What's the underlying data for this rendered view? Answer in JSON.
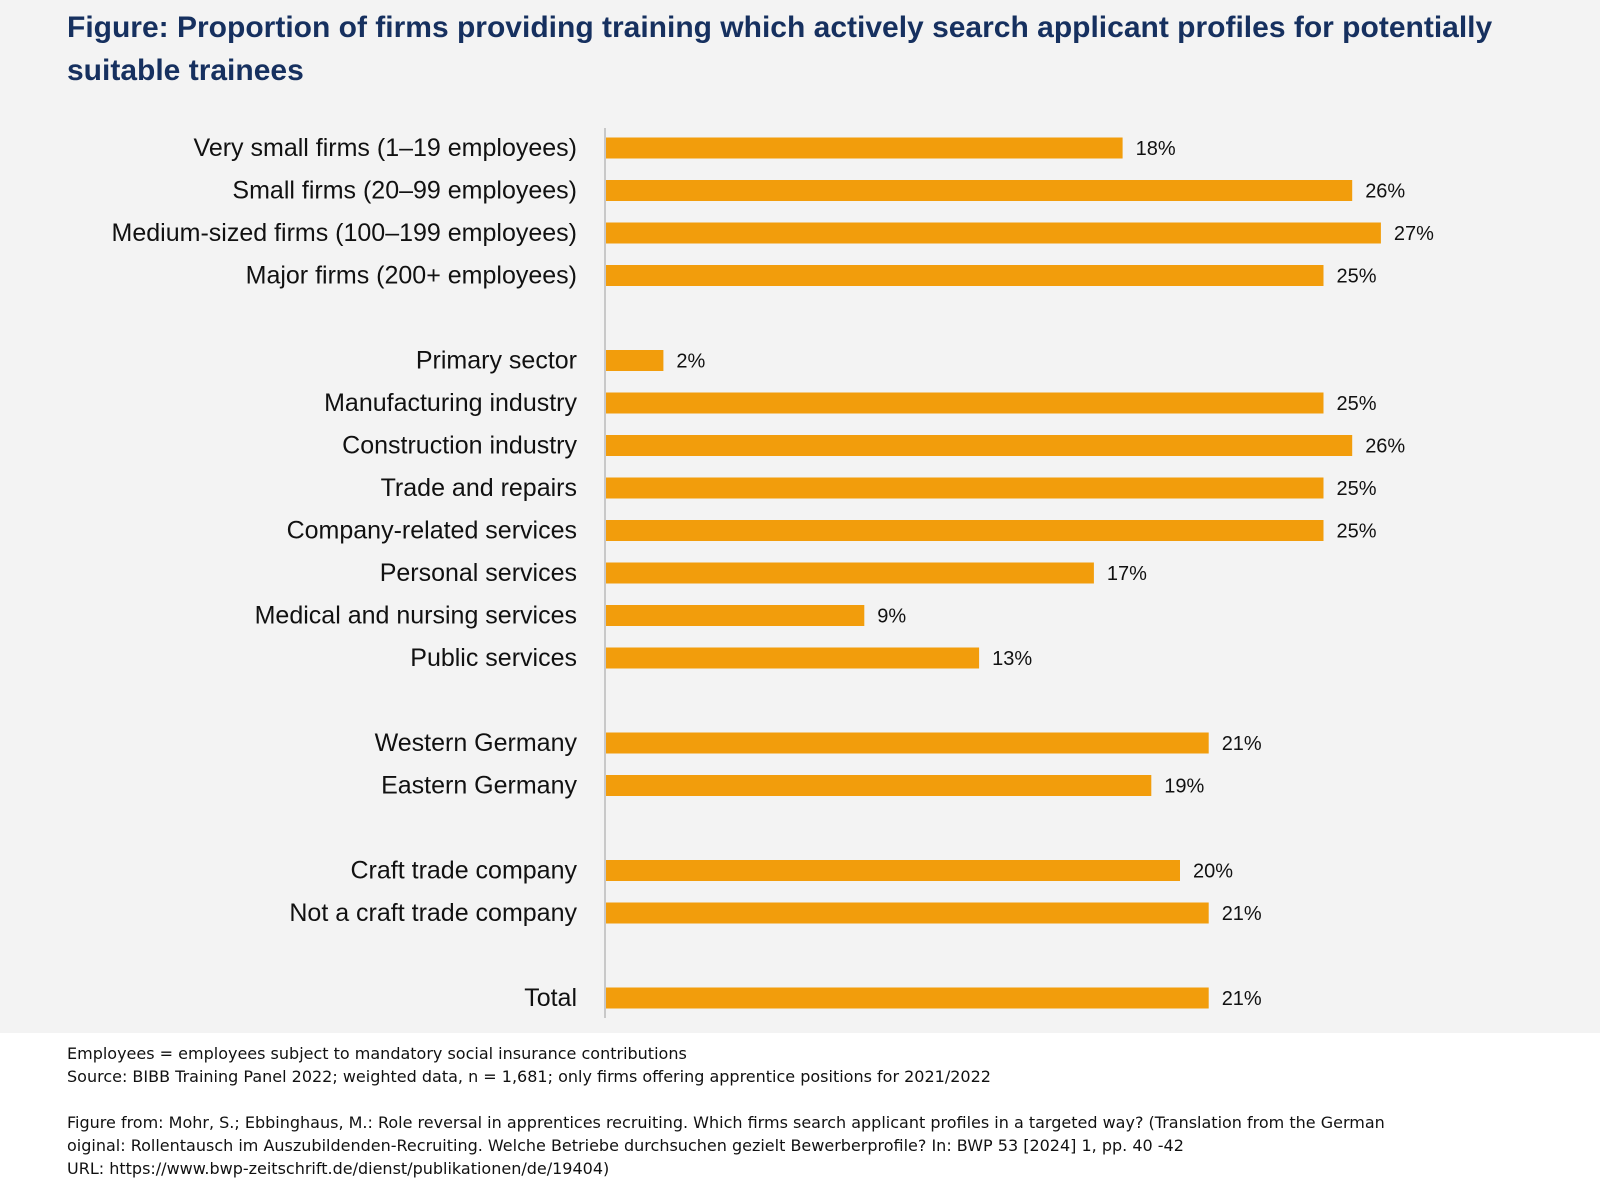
{
  "title": "Figure: Proportion of firms providing training which actively search applicant profiles for potentially suitable trainees",
  "colors": {
    "bar": "#f29d0c",
    "title": "#16305f",
    "axis": "#c8c8c8",
    "panel": "#f3f3f3"
  },
  "chart_data": {
    "type": "bar",
    "orientation": "horizontal",
    "title": "Figure: Proportion of firms providing training which actively search applicant profiles for potentially suitable trainees",
    "xlabel": "",
    "ylabel": "",
    "xlim": [
      0,
      30
    ],
    "grid": false,
    "unit": "%",
    "groups": [
      {
        "categories": [
          "Very small firms (1–19 employees)",
          "Small firms (20–99 employees)",
          "Medium-sized firms (100–199 employees)",
          "Major firms (200+ employees)"
        ],
        "values": [
          18,
          26,
          27,
          25
        ],
        "labels": [
          "18%",
          "26%",
          "27%",
          "25%"
        ]
      },
      {
        "categories": [
          "Primary sector",
          "Manufacturing industry",
          "Construction industry",
          "Trade and repairs",
          "Company-related services",
          "Personal services",
          "Medical and nursing services",
          "Public services"
        ],
        "values": [
          2,
          25,
          26,
          25,
          25,
          17,
          9,
          13
        ],
        "labels": [
          "2%",
          "25%",
          "26%",
          "25%",
          "25%",
          "17%",
          "9%",
          "13%"
        ]
      },
      {
        "categories": [
          "Western Germany",
          "Eastern Germany"
        ],
        "values": [
          21,
          19
        ],
        "labels": [
          "21%",
          "19%"
        ]
      },
      {
        "categories": [
          "Craft trade company",
          "Not a craft trade company"
        ],
        "values": [
          20,
          21
        ],
        "labels": [
          "20%",
          "21%"
        ]
      },
      {
        "categories": [
          "Total"
        ],
        "values": [
          21
        ],
        "labels": [
          "21%"
        ]
      }
    ]
  },
  "footnotes": {
    "definition": "Employees = employees subject to mandatory social insurance contributions",
    "source": "Source: BIBB Training Panel 2022; weighted data, n = 1,681; only firms offering apprentice positions for 2021/2022",
    "citation_line1": "Figure from: Mohr, S.; Ebbinghaus, M.: Role reversal in apprentices recruiting. Which firms  search applicant profiles in a targeted way? (Translation from the German",
    "citation_line2": "oiginal: Rollentausch im Auszubildenden-Recruiting. Welche Betriebe durchsuchen gezielt Bewerberprofile? In: BWP 53 [2024] 1, pp. 40 -42",
    "url_line": "URL: https://www.bwp-zeitschrift.de/dienst/publikationen/de/19404)"
  }
}
